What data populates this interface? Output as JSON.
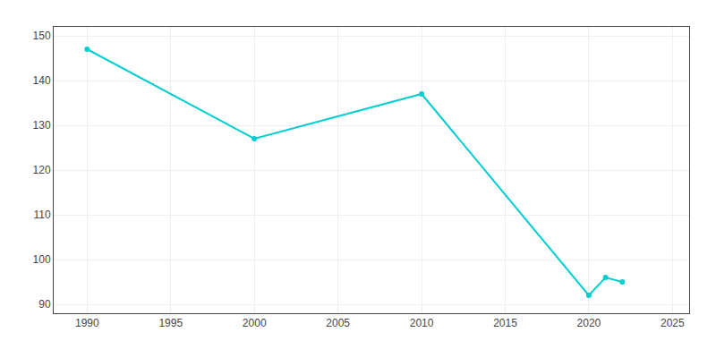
{
  "chart_data": {
    "type": "line",
    "x": [
      1990,
      2000,
      2010,
      2020,
      2021,
      2022
    ],
    "values": [
      147,
      127,
      137,
      92,
      96,
      95
    ],
    "color": "#00CED1",
    "marker": "circle",
    "line_style": "solid",
    "xlim": [
      1988,
      2026
    ],
    "ylim": [
      88,
      152
    ],
    "xticks": [
      1990,
      1995,
      2000,
      2005,
      2010,
      2015,
      2020,
      2025
    ],
    "yticks": [
      90,
      100,
      110,
      120,
      130,
      140,
      150
    ],
    "grid": true
  }
}
